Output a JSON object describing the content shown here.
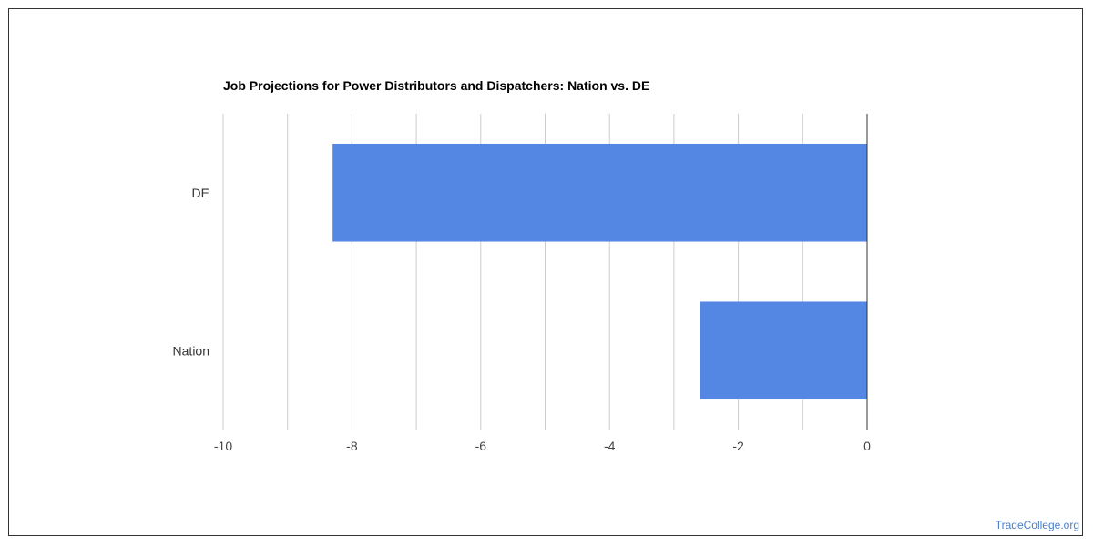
{
  "chart_data": {
    "type": "bar",
    "orientation": "horizontal",
    "title": "Job Projections for Power Distributors and Dispatchers: Nation vs. DE",
    "categories": [
      "DE",
      "Nation"
    ],
    "values": [
      -8.3,
      -2.6
    ],
    "xlim": [
      -10,
      0
    ],
    "x_ticks": [
      -10,
      -8,
      -6,
      -4,
      -2,
      0
    ],
    "grid": true,
    "bar_color": "#5387e3"
  },
  "watermark": "TradeCollege.org"
}
